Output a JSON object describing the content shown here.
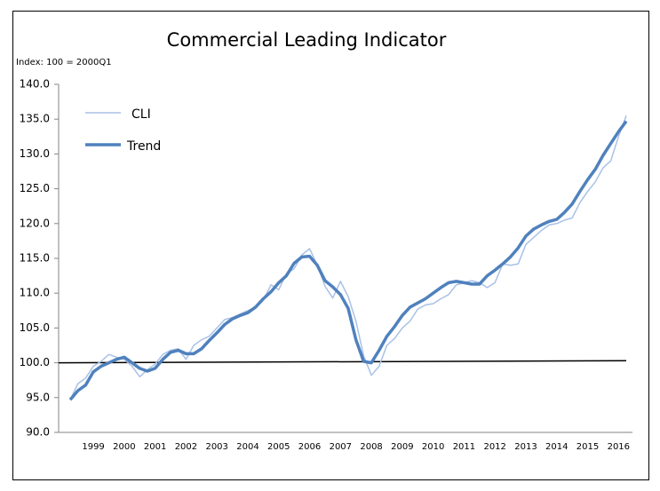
{
  "chart_data": {
    "type": "line",
    "title": "Commercial Leading Indicator",
    "y_label": "Index: 100 = 2000Q1",
    "categories": [
      null,
      null,
      "1999",
      null,
      null,
      null,
      "2000",
      null,
      null,
      null,
      "2001",
      null,
      null,
      null,
      "2002",
      null,
      null,
      null,
      "2003",
      null,
      null,
      null,
      "2004",
      null,
      null,
      null,
      "2005",
      null,
      null,
      null,
      "2006",
      null,
      null,
      null,
      "2007",
      null,
      null,
      null,
      "2008",
      null,
      null,
      null,
      "2009",
      null,
      null,
      null,
      "2010",
      null,
      null,
      null,
      "2011",
      null,
      null,
      null,
      "2012",
      null,
      null,
      null,
      "2013",
      null,
      null,
      null,
      "2014",
      null,
      null,
      null,
      "2015",
      null,
      null,
      null,
      "2016",
      null,
      null
    ],
    "series": [
      {
        "name": "CLI",
        "color": "#a9c1e6",
        "values": [
          94.7,
          97,
          97.8,
          99.5,
          100.2,
          101.2,
          100.8,
          100.5,
          99.5,
          98,
          99,
          99.8,
          101.2,
          101.8,
          102,
          100.5,
          102.5,
          103.3,
          103.8,
          105,
          106.2,
          106.5,
          107,
          107.5,
          108,
          109,
          111.2,
          110.5,
          112.8,
          113.5,
          115.5,
          116.4,
          114,
          111,
          109.3,
          111.7,
          109.5,
          106,
          101,
          98.2,
          99.5,
          102.5,
          103.5,
          105,
          106,
          107.7,
          108.3,
          108.5,
          109.2,
          109.8,
          111.2,
          111.5,
          111.8,
          111.5,
          110.8,
          111.5,
          114.2,
          114,
          114.2,
          117,
          118,
          119,
          119.8,
          120,
          120.5,
          120.8,
          123,
          124.6,
          126,
          128,
          129,
          132.5,
          135.5
        ]
      },
      {
        "name": "Trend",
        "color": "#4f81bd",
        "values": [
          94.7,
          96,
          96.8,
          98.7,
          99.5,
          100,
          100.5,
          100.8,
          100,
          99.2,
          98.8,
          99.2,
          100.5,
          101.5,
          101.8,
          101.3,
          101.3,
          102,
          103.2,
          104.3,
          105.5,
          106.3,
          106.8,
          107.2,
          108,
          109.2,
          110.2,
          111.5,
          112.5,
          114.3,
          115.2,
          115.3,
          114,
          111.8,
          110.9,
          109.8,
          107.8,
          103.3,
          100.2,
          100,
          101.8,
          103.8,
          105.2,
          106.8,
          108,
          108.6,
          109.2,
          110,
          110.8,
          111.5,
          111.7,
          111.5,
          111.3,
          111.3,
          112.5,
          113.3,
          114.2,
          115.2,
          116.5,
          118.2,
          119.2,
          119.8,
          120.3,
          120.6,
          121.6,
          122.8,
          124.6,
          126.3,
          127.8,
          129.8,
          131.5,
          133.2,
          134.7
        ]
      }
    ],
    "reference_line": {
      "start": 100,
      "end": 100.3,
      "color": "#000000"
    },
    "ylim": [
      90,
      140
    ],
    "yticks": [
      {
        "value": 90,
        "label": "90.0"
      },
      {
        "value": 95,
        "label": "95.0"
      },
      {
        "value": 100,
        "label": "100.0"
      },
      {
        "value": 105,
        "label": "105.0"
      },
      {
        "value": 110,
        "label": "110.0"
      },
      {
        "value": 115,
        "label": "115.0"
      },
      {
        "value": 120,
        "label": "120.0"
      },
      {
        "value": 125,
        "label": "125.0"
      },
      {
        "value": 130,
        "label": "130.0"
      },
      {
        "value": 135,
        "label": "135.0"
      },
      {
        "value": 140,
        "label": "140.0"
      }
    ],
    "grid": false,
    "legend": "upper left"
  }
}
